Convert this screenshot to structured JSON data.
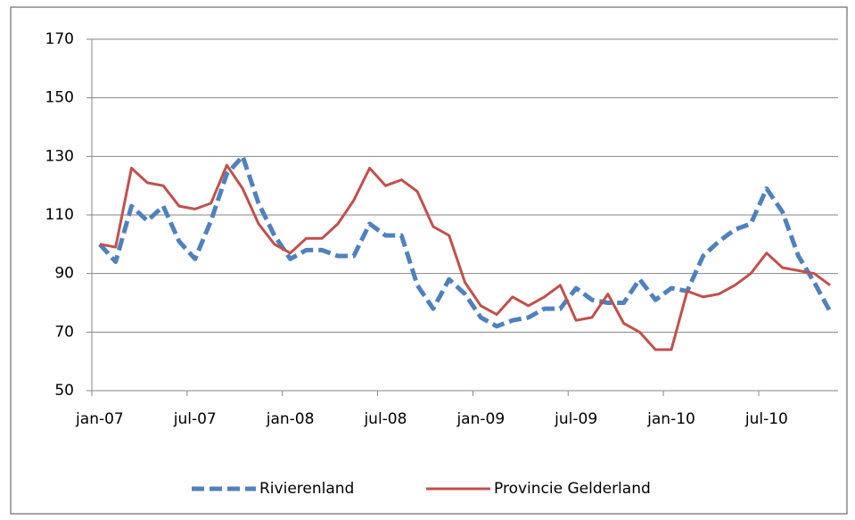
{
  "chart_data": {
    "type": "line",
    "categories": [
      "jan-07",
      null,
      null,
      null,
      null,
      null,
      "jul-07",
      null,
      null,
      null,
      null,
      null,
      "jan-08",
      null,
      null,
      null,
      null,
      null,
      "jul-08",
      null,
      null,
      null,
      null,
      null,
      "jan-09",
      null,
      null,
      null,
      null,
      null,
      "jul-09",
      null,
      null,
      null,
      null,
      null,
      "jan-10",
      null,
      null,
      null,
      null,
      null,
      "jul-10",
      null,
      null,
      null,
      null
    ],
    "series": [
      {
        "name": "Rivierenland",
        "color": "#4f81bd",
        "dashed": true,
        "values": [
          100,
          94,
          113,
          108,
          113,
          101,
          95,
          108,
          124,
          130,
          114,
          103,
          95,
          98,
          98,
          96,
          96,
          107,
          103,
          103,
          86,
          78,
          88,
          83,
          75,
          72,
          74,
          75,
          78,
          78,
          85,
          81,
          80,
          80,
          88,
          81,
          85,
          84,
          96,
          101,
          105,
          107,
          119,
          111,
          96,
          87,
          77
        ]
      },
      {
        "name": "Provincie Gelderland",
        "color": "#c0504d",
        "dashed": false,
        "values": [
          100,
          99,
          126,
          121,
          120,
          113,
          112,
          114,
          127,
          119,
          107,
          100,
          97,
          102,
          102,
          107,
          115,
          126,
          120,
          122,
          118,
          106,
          103,
          87,
          79,
          76,
          82,
          79,
          82,
          86,
          74,
          75,
          83,
          73,
          70,
          64,
          64,
          84,
          82,
          83,
          86,
          90,
          97,
          92,
          91,
          90,
          86
        ]
      }
    ],
    "ylim": [
      50,
      170
    ],
    "yticks": [
      50,
      70,
      90,
      110,
      130,
      150,
      170
    ],
    "grid": true,
    "legend": "bottom"
  }
}
